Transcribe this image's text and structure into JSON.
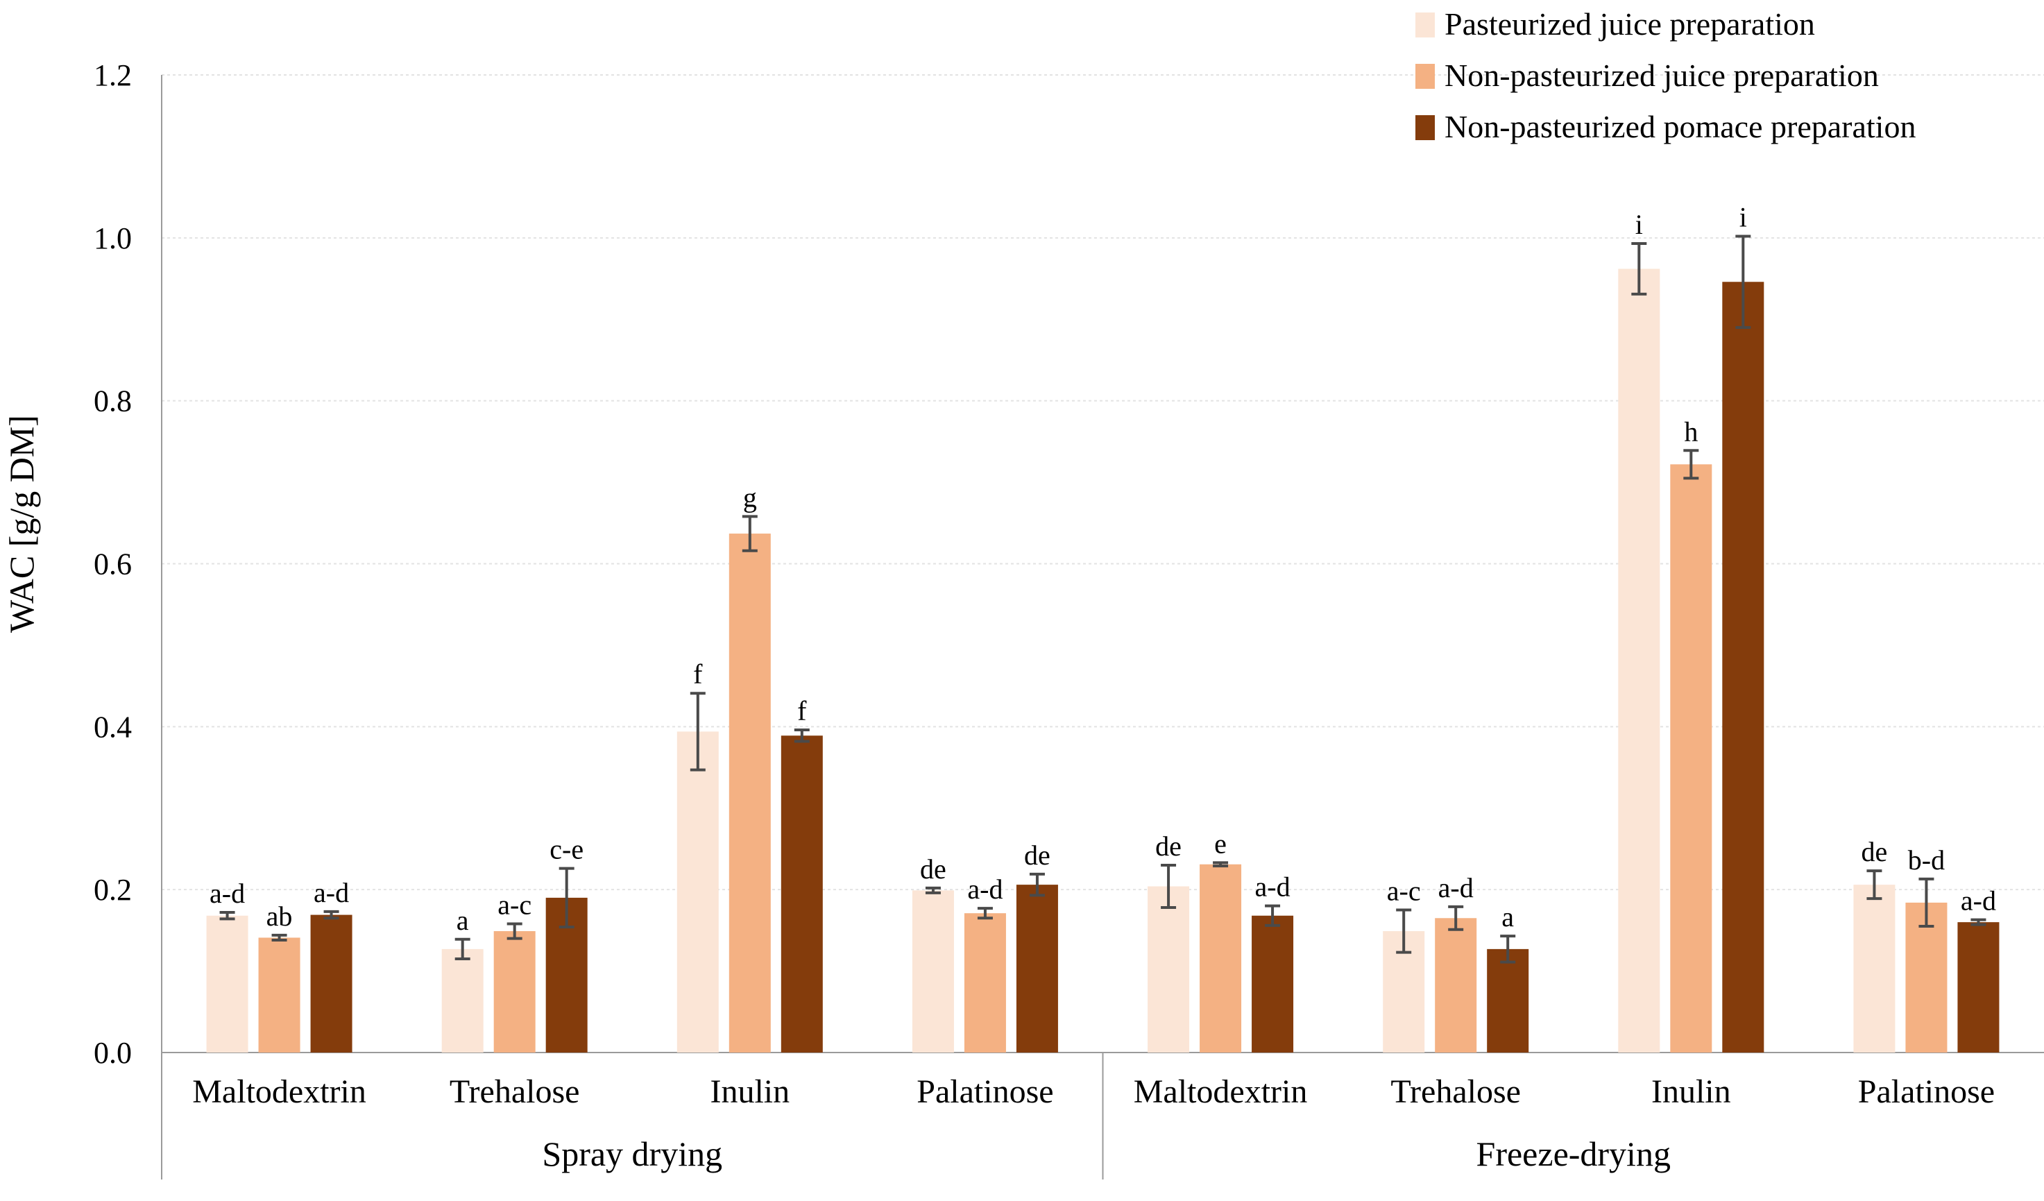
{
  "chart_data": {
    "type": "bar",
    "title": "",
    "xlabel": "",
    "ylabel": "WAC [g/g DM]",
    "ylim": [
      0,
      1.2
    ],
    "yticks": [
      "0.0",
      "0.2",
      "0.4",
      "0.6",
      "0.8",
      "1.0",
      "1.2"
    ],
    "grid": true,
    "legend_position": "top-right",
    "groups": [
      {
        "name": "Spray drying",
        "categories": [
          "Maltodextrin",
          "Trehalose",
          "Inulin",
          "Palatinose"
        ]
      },
      {
        "name": "Freeze-drying",
        "categories": [
          "Maltodextrin",
          "Trehalose",
          "Inulin",
          "Palatinose"
        ]
      }
    ],
    "series": [
      {
        "name": "Pasteurized juice preparation",
        "color": "#fbe5d6",
        "values": [
          0.168,
          0.127,
          0.394,
          0.199,
          0.204,
          0.149,
          0.962,
          0.206
        ],
        "errors": [
          0.004,
          0.012,
          0.047,
          0.003,
          0.026,
          0.026,
          0.031,
          0.017
        ],
        "labels": [
          "a-d",
          "a",
          "f",
          "de",
          "de",
          "a-c",
          "i",
          "de"
        ]
      },
      {
        "name": "Non-pasteurized juice preparation",
        "color": "#f4b183",
        "values": [
          0.141,
          0.149,
          0.637,
          0.171,
          0.231,
          0.165,
          0.722,
          0.184
        ],
        "errors": [
          0.003,
          0.009,
          0.021,
          0.006,
          0.002,
          0.014,
          0.017,
          0.029
        ],
        "labels": [
          "ab",
          "a-c",
          "g",
          "a-d",
          "e",
          "a-d",
          "h",
          "b-d"
        ]
      },
      {
        "name": "Non-pasteurized pomace preparation",
        "color": "#843c0c",
        "values": [
          0.169,
          0.19,
          0.389,
          0.206,
          0.168,
          0.127,
          0.946,
          0.16
        ],
        "errors": [
          0.004,
          0.036,
          0.007,
          0.013,
          0.012,
          0.016,
          0.056,
          0.003
        ],
        "labels": [
          "a-d",
          "c-e",
          "f",
          "de",
          "a-d",
          "a",
          "i",
          "a-d"
        ]
      }
    ]
  }
}
